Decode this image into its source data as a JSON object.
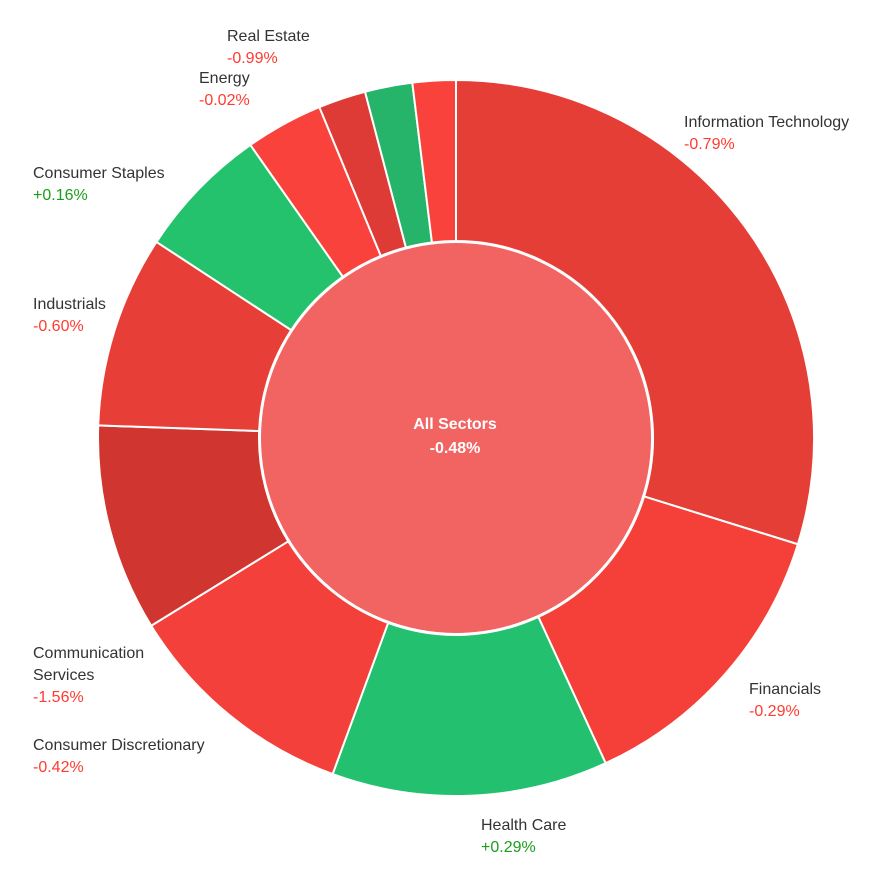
{
  "chart_data": {
    "type": "pie",
    "subtype": "donut-sunburst",
    "center": {
      "label": "All Sectors",
      "change": "-0.48%",
      "color": "#f26462"
    },
    "slices": [
      {
        "id": "it",
        "label": "Information Technology",
        "change": "-0.79%",
        "value": 30.6,
        "color": "#e53e37",
        "change_color": "#ff3b30"
      },
      {
        "id": "fin",
        "label": "Financials",
        "change": "-0.29%",
        "value": 13.7,
        "color": "#f5403a",
        "change_color": "#ff3b30"
      },
      {
        "id": "hc",
        "label": "Health Care",
        "change": "+0.29%",
        "value": 12.8,
        "color": "#22c06f",
        "change_color": "#1a9e1a"
      },
      {
        "id": "cd",
        "label": "Consumer Discretionary",
        "change": "-0.42%",
        "value": 10.9,
        "color": "#f3403a",
        "change_color": "#ff3b30"
      },
      {
        "id": "cs",
        "label": "Communication Services",
        "change": "-1.56%",
        "value": 9.6,
        "color": "#d03530",
        "change_color": "#ff3b30"
      },
      {
        "id": "ind",
        "label": "Industrials",
        "change": "-0.60%",
        "value": 8.9,
        "color": "#e73e38",
        "change_color": "#ff3b30"
      },
      {
        "id": "stap",
        "label": "Consumer Staples",
        "change": "+0.16%",
        "value": 6.2,
        "color": "#25c26e",
        "change_color": "#1a9e1a"
      },
      {
        "id": "util",
        "label": "",
        "change": "",
        "value": 3.6,
        "color": "#f9423c",
        "change_color": "#ff3b30"
      },
      {
        "id": "re",
        "label": "Real Estate",
        "change": "-0.99%",
        "value": 2.2,
        "color": "#de3b36",
        "change_color": "#ff3b30"
      },
      {
        "id": "en",
        "label": "Energy",
        "change": "-0.02%",
        "value": 2.2,
        "color": "#25b46a",
        "change_color": "#1a9e1a"
      },
      {
        "id": "mat",
        "label": "",
        "change": "",
        "value": 2.0,
        "color": "#f9423c",
        "change_color": "#ff3b30"
      }
    ]
  }
}
